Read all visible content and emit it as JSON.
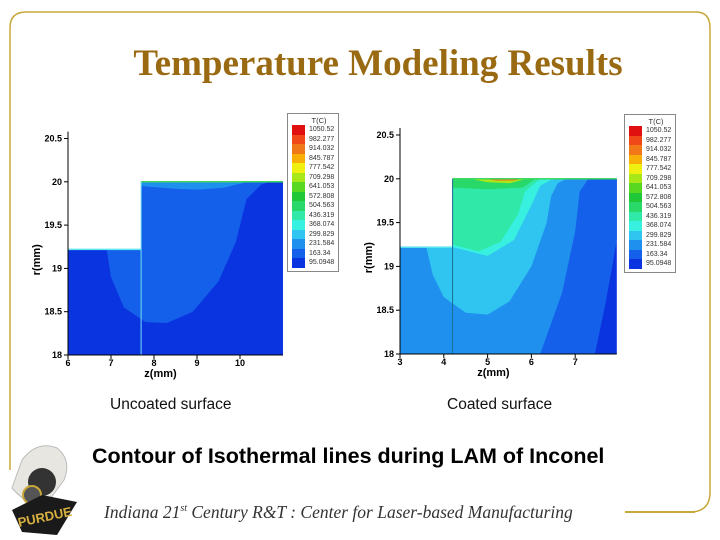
{
  "slide": {
    "title": "Temperature Modeling Results",
    "caption_left": "Uncoated surface",
    "caption_right": "Coated surface",
    "main_caption": "Contour of Isothermal lines during LAM of Inconel",
    "footer_pre": "Indiana 21",
    "footer_sup": "st",
    "footer_post": " Century R&T :  Center for Laser-based Manufacturing",
    "logo_text": "PURDUE",
    "frame_color": "#c8a83a",
    "title_color": "#9a6a12"
  },
  "legend": {
    "title": "T(C)",
    "levels": [
      "1050.52",
      "982.277",
      "914.032",
      "845.787",
      "777.542",
      "709.298",
      "641.053",
      "572.808",
      "504.563",
      "436.319",
      "368.074",
      "299.829",
      "231.584",
      "163.34",
      "95.0948"
    ],
    "colors": [
      "#e01010",
      "#f04818",
      "#f07818",
      "#f8b008",
      "#f0f010",
      "#a8e818",
      "#58d820",
      "#20c838",
      "#28d868",
      "#30e8a8",
      "#38f0e0",
      "#30c4f0",
      "#2090ee",
      "#1460ea",
      "#0a34e0"
    ]
  },
  "chart_data": [
    {
      "type": "heatmap",
      "subtype": "contour",
      "title": "Uncoated surface",
      "xlabel": "z(mm)",
      "ylabel": "r(mm)",
      "xlim": [
        6,
        11
      ],
      "ylim": [
        18,
        20.6
      ],
      "xticks": [
        "6",
        "7",
        "8",
        "9",
        "10"
      ],
      "xtick_values": [
        6,
        7,
        8,
        9,
        10
      ],
      "yticks": [
        "20.5",
        "20",
        "19.5",
        "19",
        "18.5",
        "18"
      ],
      "ytick_values": [
        20.5,
        20,
        19.5,
        19,
        18.5,
        18
      ],
      "step_z": 7.7,
      "substrate_top_r": 19.22,
      "clad_top_r": 20,
      "regions": [
        {
          "level": "95.0948",
          "points": [
            [
              6,
              18
            ],
            [
              6,
              19.22
            ],
            [
              7.7,
              19.22
            ],
            [
              7.7,
              20
            ],
            [
              11,
              20
            ],
            [
              11,
              18
            ]
          ]
        },
        {
          "level": "163.34",
          "points": [
            [
              6.9,
              19.22
            ],
            [
              7.0,
              18.9
            ],
            [
              7.3,
              18.55
            ],
            [
              7.8,
              18.38
            ],
            [
              8.3,
              18.37
            ],
            [
              8.9,
              18.5
            ],
            [
              9.5,
              18.85
            ],
            [
              9.9,
              19.3
            ],
            [
              10.15,
              19.8
            ],
            [
              10.5,
              19.97
            ],
            [
              10.7,
              20
            ],
            [
              7.7,
              20
            ],
            [
              7.7,
              19.22
            ]
          ]
        },
        {
          "level": "231.584",
          "points": [
            [
              7.7,
              20
            ],
            [
              7.7,
              19.95
            ],
            [
              8.5,
              19.92
            ],
            [
              9,
              19.91
            ],
            [
              9.6,
              19.93
            ],
            [
              10.2,
              20
            ]
          ]
        }
      ]
    },
    {
      "type": "heatmap",
      "subtype": "contour",
      "title": "Coated surface",
      "xlabel": "z(mm)",
      "ylabel": "r(mm)",
      "xlim": [
        3,
        7.95
      ],
      "ylim": [
        18,
        20.6
      ],
      "xticks": [
        "3",
        "4",
        "5",
        "6",
        "7"
      ],
      "xtick_values": [
        3,
        4,
        5,
        6,
        7
      ],
      "yticks": [
        "20.5",
        "20",
        "19.5",
        "19",
        "18.5",
        "18"
      ],
      "ytick_values": [
        20.5,
        20,
        19.5,
        19,
        18.5,
        18
      ],
      "step_z": 4.2,
      "substrate_top_r": 19.22,
      "clad_top_r": 20,
      "regions": [
        {
          "level": "95.0948",
          "points": [
            [
              3,
              18
            ],
            [
              3,
              19.22
            ],
            [
              4.2,
              19.22
            ],
            [
              4.2,
              20
            ],
            [
              7.95,
              20
            ],
            [
              7.95,
              18
            ]
          ]
        },
        {
          "level": "163.34",
          "points": [
            [
              3,
              18
            ],
            [
              3,
              19.22
            ],
            [
              4.2,
              19.22
            ],
            [
              4.2,
              20
            ],
            [
              7.95,
              20
            ],
            [
              7.95,
              19.3
            ],
            [
              7.7,
              18.6
            ],
            [
              7.45,
              18
            ]
          ]
        },
        {
          "level": "231.584",
          "points": [
            [
              3,
              18
            ],
            [
              3,
              19.22
            ],
            [
              4.2,
              19.22
            ],
            [
              4.2,
              20
            ],
            [
              7.3,
              20
            ],
            [
              7.1,
              19.85
            ],
            [
              7.0,
              19.4
            ],
            [
              6.7,
              18.7
            ],
            [
              6.2,
              18
            ]
          ]
        },
        {
          "level": "299.829",
          "points": [
            [
              3.6,
              19.22
            ],
            [
              3.75,
              18.9
            ],
            [
              4.0,
              18.65
            ],
            [
              4.5,
              18.47
            ],
            [
              5,
              18.45
            ],
            [
              5.5,
              18.6
            ],
            [
              6,
              19
            ],
            [
              6.35,
              19.5
            ],
            [
              6.45,
              19.8
            ],
            [
              6.6,
              19.95
            ],
            [
              6.8,
              20
            ],
            [
              4.2,
              20
            ],
            [
              4.2,
              19.22
            ]
          ]
        },
        {
          "level": "368.074",
          "points": [
            [
              4.2,
              19.22
            ],
            [
              5,
              19.12
            ],
            [
              5.6,
              19.3
            ],
            [
              6,
              19.7
            ],
            [
              6.2,
              19.92
            ],
            [
              6.5,
              20
            ],
            [
              4.2,
              20
            ]
          ]
        },
        {
          "level": "436.319",
          "points": [
            [
              4.2,
              19.25
            ],
            [
              4.8,
              19.17
            ],
            [
              5.3,
              19.28
            ],
            [
              5.7,
              19.6
            ],
            [
              5.85,
              19.85
            ],
            [
              6.2,
              20
            ],
            [
              4.2,
              20
            ]
          ]
        },
        {
          "level": "504.563",
          "points": [
            [
              4.2,
              19.9
            ],
            [
              5,
              19.88
            ],
            [
              5.8,
              19.9
            ],
            [
              6.1,
              20
            ],
            [
              4.2,
              20
            ]
          ]
        },
        {
          "level": "709.298",
          "points": [
            [
              4.6,
              20
            ],
            [
              5,
              19.96
            ],
            [
              5.5,
              19.95
            ],
            [
              5.9,
              20
            ]
          ]
        },
        {
          "level": "914.032",
          "points": [
            [
              4.9,
              20
            ],
            [
              5.2,
              19.98
            ],
            [
              5.6,
              19.98
            ],
            [
              5.8,
              20
            ]
          ]
        }
      ]
    }
  ]
}
